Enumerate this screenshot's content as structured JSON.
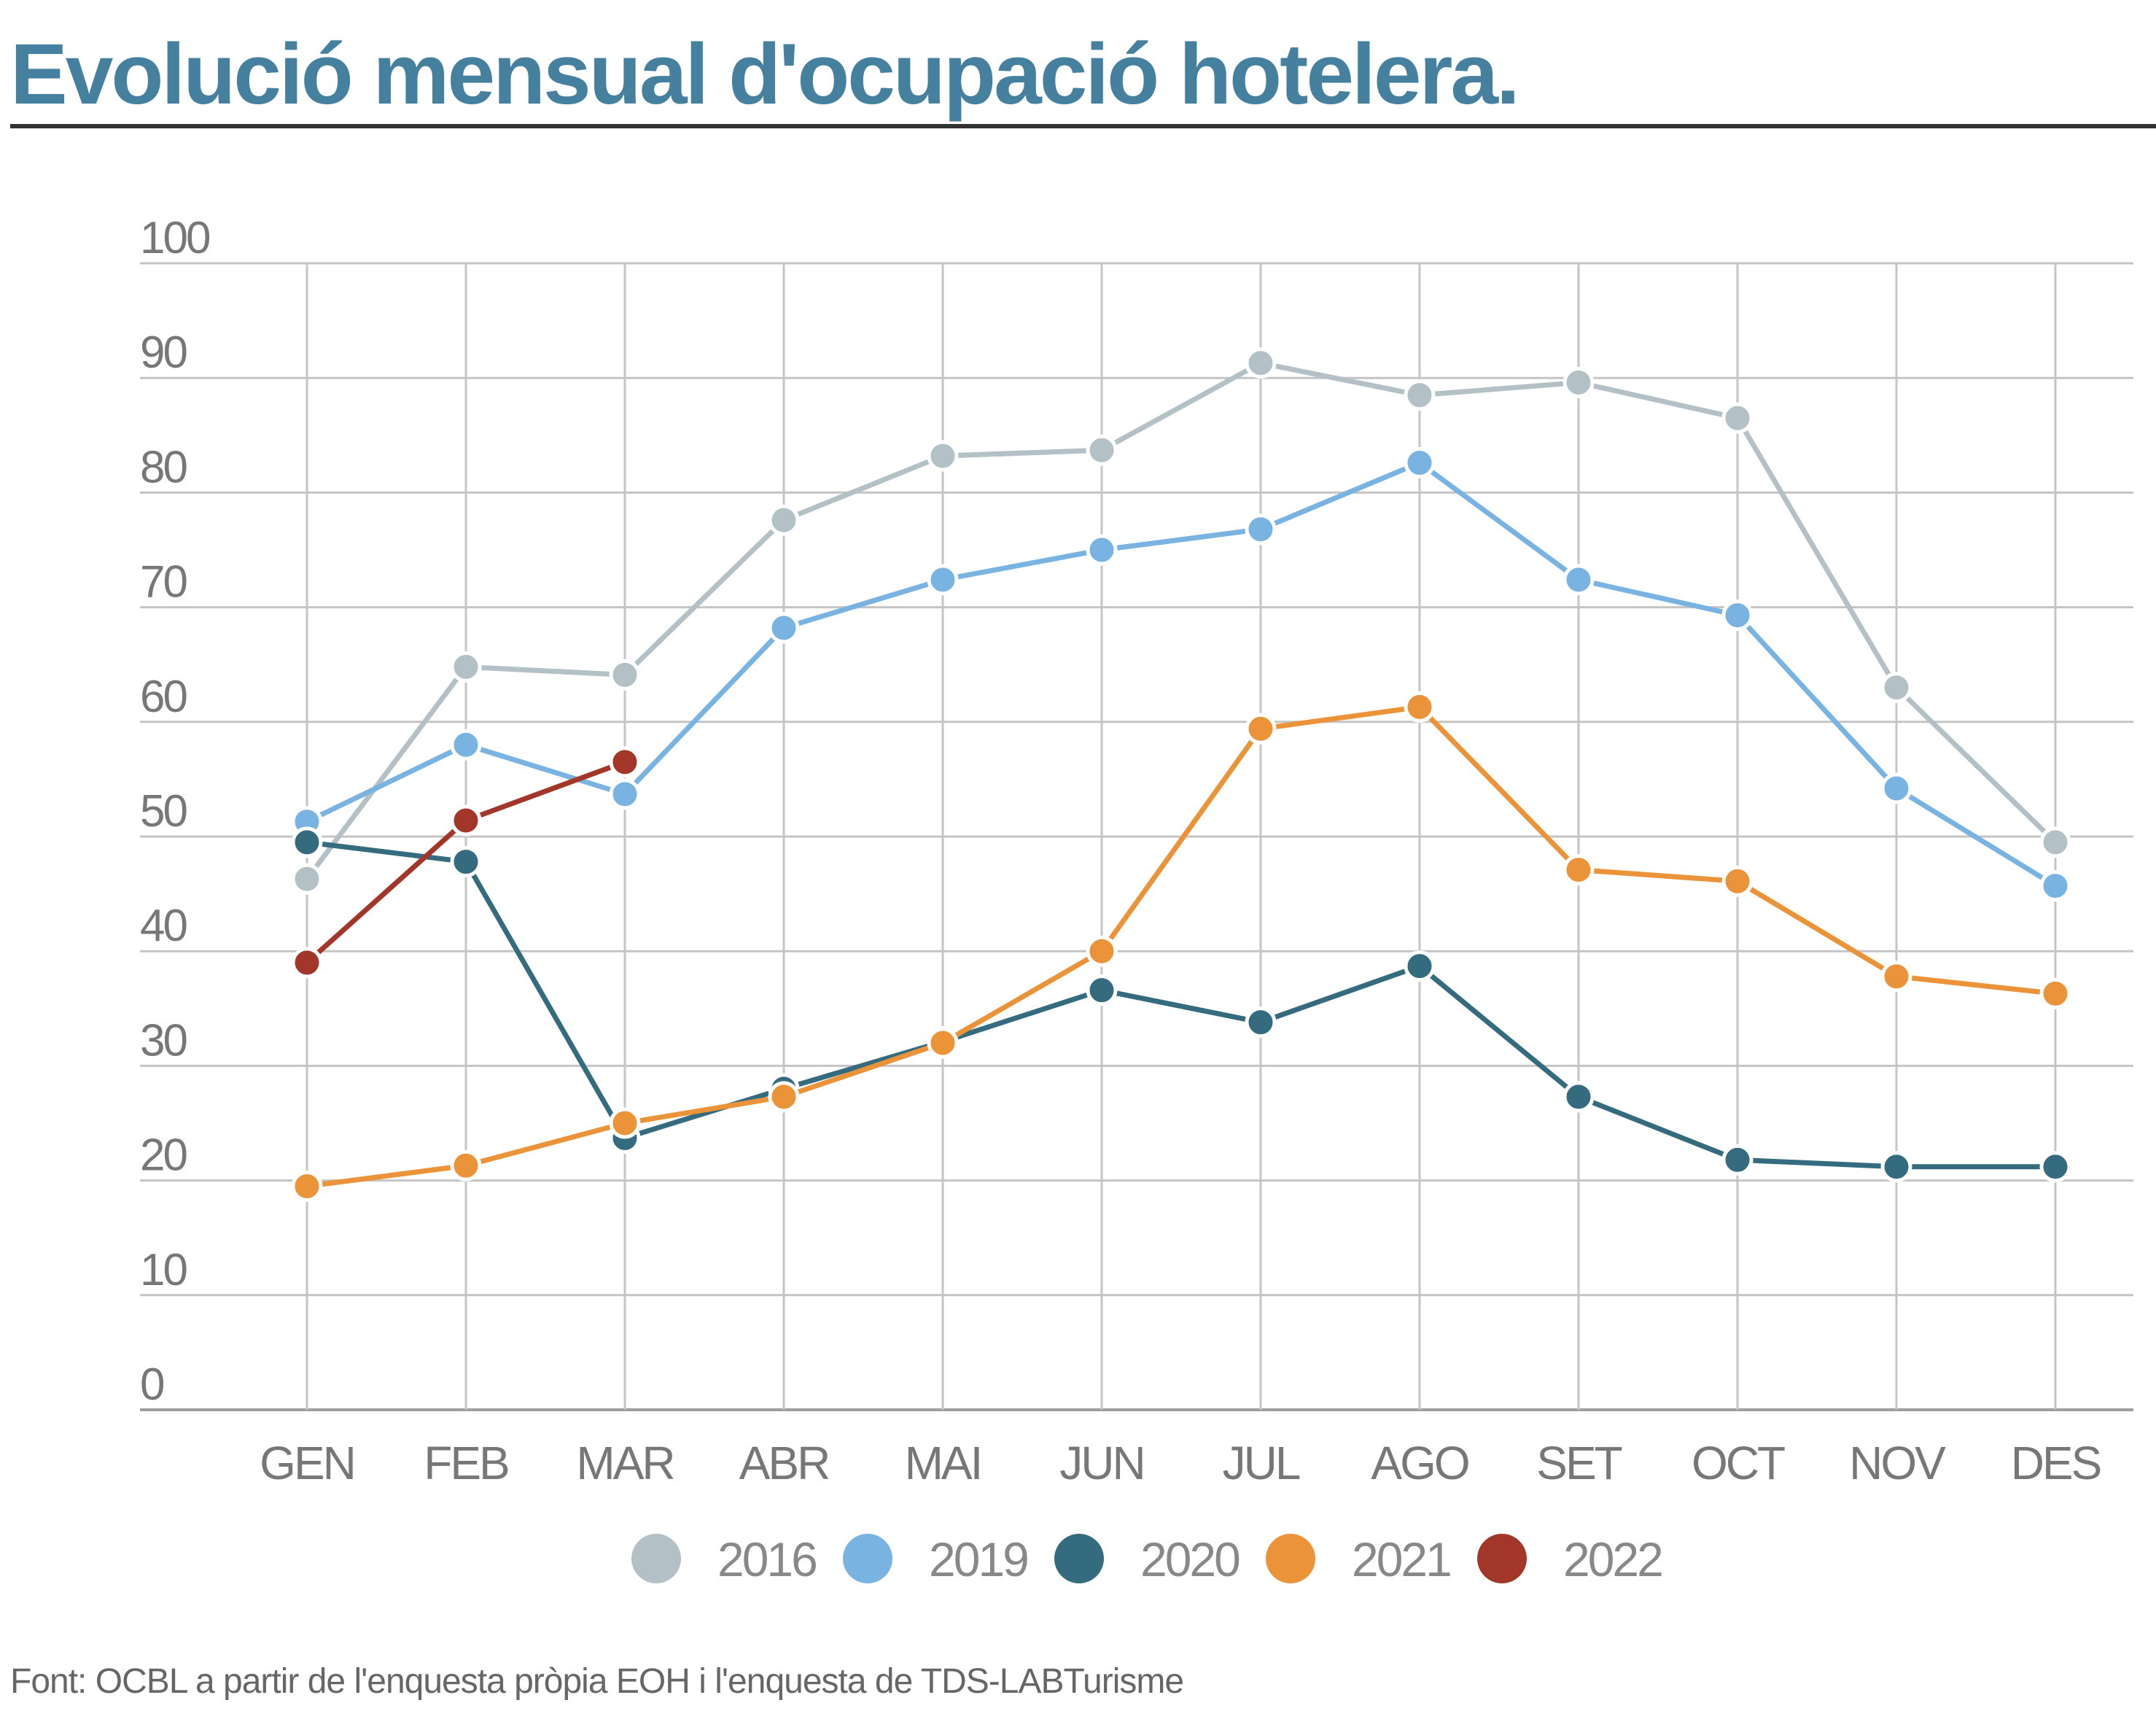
{
  "title": "Evolució mensual d'ocupació hotelera.",
  "source": "Font: OCBL a partir de l'enquesta pròpia EOH i l'enquesta de TDS-LABTurisme",
  "chart_data": {
    "type": "line",
    "categories": [
      "GEN",
      "FEB",
      "MAR",
      "ABR",
      "MAI",
      "JUN",
      "JUL",
      "AGO",
      "SET",
      "OCT",
      "NOV",
      "DES"
    ],
    "yticks": [
      "0",
      "10",
      "20",
      "30",
      "40",
      "50",
      "60",
      "70",
      "80",
      "90",
      "100"
    ],
    "ylim": [
      0,
      100
    ],
    "grid": true,
    "legend_position": "bottom",
    "series": [
      {
        "name": "2016",
        "color": "#b3c0c6",
        "values": [
          46.3,
          64.8,
          64.1,
          77.6,
          83.2,
          83.7,
          91.3,
          88.5,
          89.6,
          86.5,
          63.0,
          49.5
        ]
      },
      {
        "name": "2019",
        "color": "#78b3e2",
        "values": [
          51.3,
          58.0,
          53.7,
          68.2,
          72.4,
          75.0,
          76.8,
          82.6,
          72.4,
          69.3,
          54.2,
          45.7
        ]
      },
      {
        "name": "2020",
        "color": "#346b7e",
        "values": [
          49.5,
          47.8,
          23.7,
          28.0,
          32.1,
          36.6,
          33.8,
          38.7,
          27.3,
          21.8,
          21.2,
          21.2
        ]
      },
      {
        "name": "2021",
        "color": "#ea9338",
        "values": [
          19.5,
          21.3,
          25.0,
          27.3,
          32.0,
          40.0,
          59.4,
          61.3,
          47.1,
          46.1,
          37.8,
          36.3
        ]
      },
      {
        "name": "2022",
        "color": "#a23729",
        "values": [
          39.0,
          51.4,
          56.5,
          null,
          null,
          null,
          null,
          null,
          null,
          null,
          null,
          null
        ]
      }
    ]
  }
}
